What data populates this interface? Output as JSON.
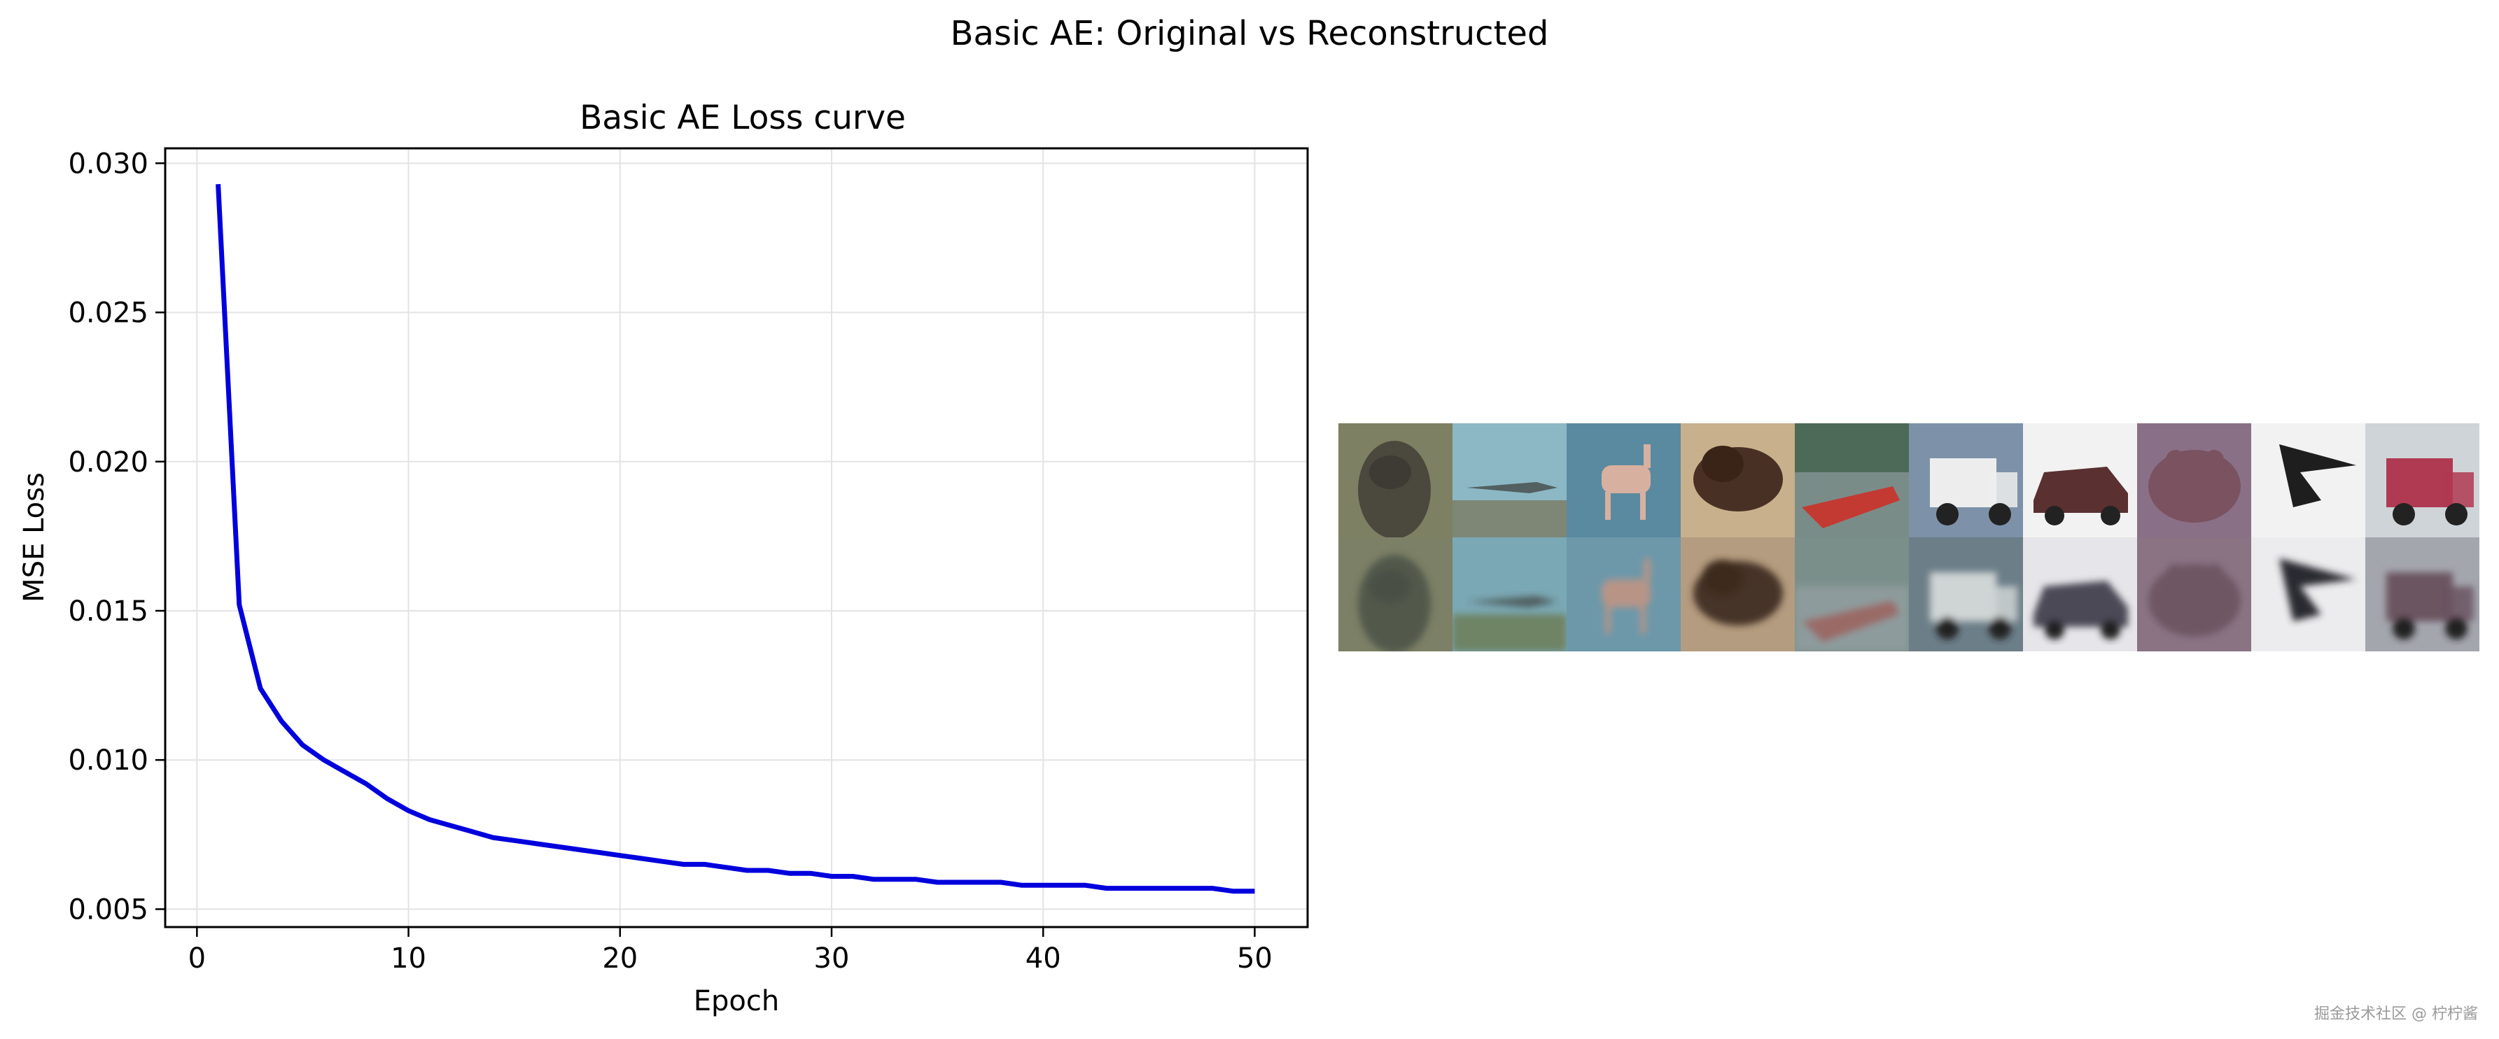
{
  "figure": {
    "suptitle": "Basic AE: Original vs Reconstructed",
    "watermark": "掘金技术社区 @ 柠柠酱"
  },
  "chart_data": {
    "type": "line",
    "title": "Basic AE Loss curve",
    "xlabel": "Epoch",
    "ylabel": "MSE Loss",
    "xlim": [
      -1.5,
      52.5
    ],
    "ylim": [
      0.0044,
      0.0305
    ],
    "xticks": [
      0,
      10,
      20,
      30,
      40,
      50
    ],
    "xtick_labels": [
      "0",
      "10",
      "20",
      "30",
      "40",
      "50"
    ],
    "yticks": [
      0.005,
      0.01,
      0.015,
      0.02,
      0.025,
      0.03
    ],
    "ytick_labels": [
      "0.005",
      "0.010",
      "0.015",
      "0.020",
      "0.025",
      "0.030"
    ],
    "grid": true,
    "legend": "none",
    "series": [
      {
        "color": "#0000dd",
        "x": [
          1,
          2,
          3,
          4,
          5,
          6,
          7,
          8,
          9,
          10,
          11,
          12,
          13,
          14,
          15,
          16,
          17,
          18,
          19,
          20,
          21,
          22,
          23,
          24,
          25,
          26,
          27,
          28,
          29,
          30,
          31,
          32,
          33,
          34,
          35,
          36,
          37,
          38,
          39,
          40,
          41,
          42,
          43,
          44,
          45,
          46,
          47,
          48,
          49,
          50
        ],
        "y": [
          0.0293,
          0.0152,
          0.0124,
          0.0113,
          0.0105,
          0.01,
          0.0096,
          0.0092,
          0.0087,
          0.0083,
          0.008,
          0.0078,
          0.0076,
          0.0074,
          0.0073,
          0.0072,
          0.0071,
          0.007,
          0.0069,
          0.0068,
          0.0067,
          0.0066,
          0.0065,
          0.0065,
          0.0064,
          0.0063,
          0.0063,
          0.0062,
          0.0062,
          0.0061,
          0.0061,
          0.006,
          0.006,
          0.006,
          0.0059,
          0.0059,
          0.0059,
          0.0059,
          0.0058,
          0.0058,
          0.0058,
          0.0058,
          0.0057,
          0.0057,
          0.0057,
          0.0057,
          0.0057,
          0.0057,
          0.0056,
          0.0056
        ]
      }
    ]
  },
  "image_grid": {
    "rows": 2,
    "cols": 10,
    "tiles": [
      {
        "bg": "#7d8062",
        "fg": "#3e3a34",
        "shape": "bird"
      },
      {
        "bg": "#8bb8c4",
        "fg": "#7b7a62",
        "shape": "plane"
      },
      {
        "bg": "#5a8aa0",
        "fg": "#d7b0a0",
        "shape": "deer"
      },
      {
        "bg": "#c8b08c",
        "fg": "#3a2418",
        "shape": "dog"
      },
      {
        "bg": "#4d6a58",
        "fg": "#c23a32",
        "shape": "ship"
      },
      {
        "bg": "#7d92a8",
        "fg": "#ededed",
        "shape": "truck"
      },
      {
        "bg": "#f2f2f2",
        "fg": "#5a3030",
        "shape": "car"
      },
      {
        "bg": "#8a7086",
        "fg": "#7a5260",
        "shape": "frog"
      },
      {
        "bg": "#f2f2f2",
        "fg": "#1e1e1e",
        "shape": "jet"
      },
      {
        "bg": "#cfd4d8",
        "fg": "#b03a52",
        "shape": "truck"
      },
      {
        "bg": "#7c8066",
        "fg": "#485044",
        "shape": "bird"
      },
      {
        "bg": "#7aa8b4",
        "fg": "#6c7a52",
        "shape": "plane"
      },
      {
        "bg": "#6c98aa",
        "fg": "#b89486",
        "shape": "deer"
      },
      {
        "bg": "#b49c80",
        "fg": "#3c2a1c",
        "shape": "dog"
      },
      {
        "bg": "#7b8f8a",
        "fg": "#9a6a66",
        "shape": "ship"
      },
      {
        "bg": "#6c7e88",
        "fg": "#cfd4d4",
        "shape": "truck"
      },
      {
        "bg": "#e6e6ea",
        "fg": "#4c4a56",
        "shape": "car"
      },
      {
        "bg": "#8a7484",
        "fg": "#6e5664",
        "shape": "frog"
      },
      {
        "bg": "#ececee",
        "fg": "#2a2c30",
        "shape": "jet"
      },
      {
        "bg": "#a4a6ae",
        "fg": "#6a5460",
        "shape": "truck"
      }
    ]
  }
}
